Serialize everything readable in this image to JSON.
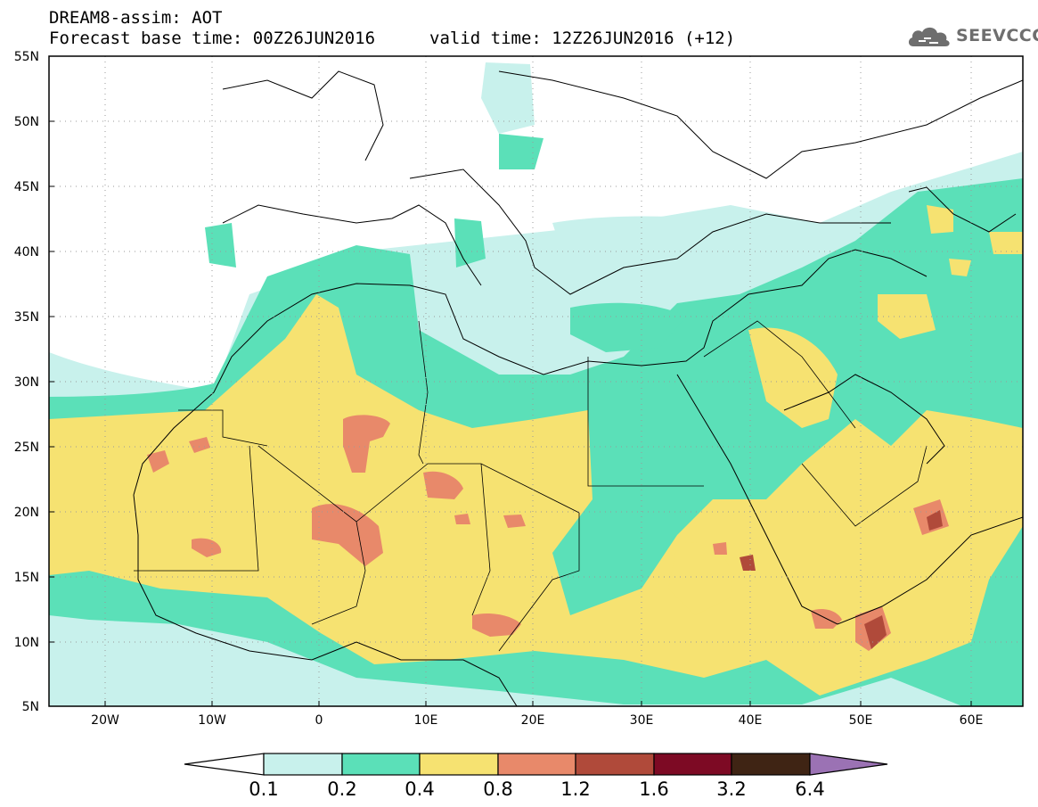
{
  "header": {
    "title": "DREAM8-assim: AOT",
    "base_time": "Forecast base time: 00Z26JUN2016",
    "valid_time": "valid time: 12Z26JUN2016 (+12)"
  },
  "logo": {
    "icon": "cloud-icon",
    "text": "SEEVCCC",
    "color": "#6e6e6e"
  },
  "axes": {
    "lon_labels": [
      "20W",
      "10W",
      "0",
      "10E",
      "20E",
      "30E",
      "40E",
      "50E",
      "60E"
    ],
    "lat_labels": [
      "55N",
      "50N",
      "45N",
      "40N",
      "35N",
      "30N",
      "25N",
      "20N",
      "15N",
      "10N",
      "5N"
    ],
    "lon_range": [
      -25,
      65
    ],
    "lat_range": [
      5,
      55
    ],
    "grid": true
  },
  "colorbar": {
    "labels": [
      "0.1",
      "0.2",
      "0.4",
      "0.8",
      "1.2",
      "1.6",
      "3.2",
      "6.4"
    ],
    "colors": [
      "#ffffff",
      "#c8f1ec",
      "#5be0b8",
      "#f6e271",
      "#e8896a",
      "#b04a3a",
      "#7d0a24",
      "#3f2414",
      "#9b72b4"
    ]
  },
  "map_colors": {
    "aot_0_1": "#ffffff",
    "aot_0_2": "#c8f1ec",
    "aot_0_4": "#5be0b8",
    "aot_0_8": "#f6e271",
    "aot_1_2": "#e8896a",
    "aot_1_6": "#b04a3a",
    "aot_3_2": "#7d0a24"
  }
}
